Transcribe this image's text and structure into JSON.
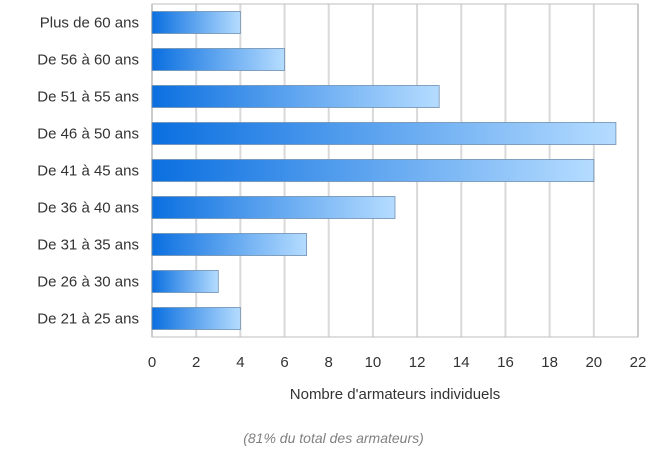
{
  "chart_data": {
    "type": "bar",
    "orientation": "horizontal",
    "categories": [
      "Plus de 60 ans",
      "De 56 à 60 ans",
      "De 51 à 55 ans",
      "De 46 à 50 ans",
      "De 41 à 45 ans",
      "De 36 à 40 ans",
      "De 31 à 35 ans",
      "De 26 à 30 ans",
      "De 21 à 25 ans"
    ],
    "values": [
      4,
      6,
      13,
      21,
      20,
      11,
      7,
      3,
      4
    ],
    "xlabel": "Nombre d'armateurs individuels",
    "xlim": [
      0,
      22
    ],
    "xticks": [
      "0",
      "2",
      "4",
      "6",
      "8",
      "10",
      "12",
      "14",
      "16",
      "18",
      "20",
      "22"
    ],
    "grid": true,
    "colors": {
      "bar_start": "#0a6fe0",
      "bar_end": "#b5dcff",
      "grid": "#d9d9d9",
      "border": "#bfbfbf"
    }
  },
  "note": "(81% du total des armateurs)"
}
